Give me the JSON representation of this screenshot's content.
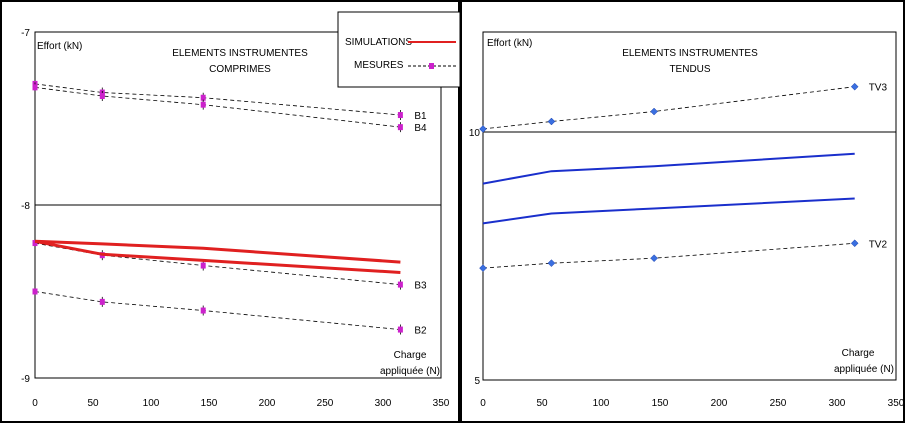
{
  "chart_data": [
    {
      "type": "line",
      "title": "ELEMENTS INSTRUMENTES",
      "subtitle": "COMPRIMES",
      "ylabel": "Effort (kN)",
      "xlabel": "Charge appliquée (N)",
      "xlabel_lines": [
        "Charge",
        "appliquée (N)"
      ],
      "xlim": [
        0,
        350
      ],
      "ylim": [
        -9,
        -7
      ],
      "x_ticks": [
        "0",
        "50",
        "100",
        "150",
        "200",
        "250",
        "300",
        "350"
      ],
      "y_ticks": [
        "-7",
        "-8",
        "-9"
      ],
      "legend": {
        "position": "top-right",
        "entries": [
          {
            "label": "SIMULATIONS",
            "style": "solid-line",
            "color": "#e02020"
          },
          {
            "label": "MESURES",
            "style": "dashed-markers",
            "color": "#cc22cc"
          }
        ]
      },
      "series": [
        {
          "name": "B1",
          "kind": "mesures",
          "x": [
            0,
            58,
            145,
            315
          ],
          "y": [
            -7.3,
            -7.35,
            -7.38,
            -7.48
          ]
        },
        {
          "name": "B4",
          "kind": "mesures",
          "x": [
            0,
            58,
            145,
            315
          ],
          "y": [
            -7.32,
            -7.37,
            -7.42,
            -7.55
          ]
        },
        {
          "name": "B3",
          "kind": "mesures",
          "x": [
            0,
            58,
            145,
            315
          ],
          "y": [
            -8.22,
            -8.29,
            -8.35,
            -8.46
          ]
        },
        {
          "name": "B2",
          "kind": "mesures",
          "x": [
            0,
            58,
            145,
            315
          ],
          "y": [
            -8.5,
            -8.56,
            -8.61,
            -8.72
          ]
        },
        {
          "kind": "simulation",
          "x": [
            0,
            58,
            145,
            315
          ],
          "y": [
            -8.21,
            -8.225,
            -8.25,
            -8.33
          ]
        },
        {
          "kind": "simulation",
          "x": [
            0,
            58,
            145,
            315
          ],
          "y": [
            -8.21,
            -8.285,
            -8.32,
            -8.39
          ]
        }
      ]
    },
    {
      "type": "line",
      "title": "ELEMENTS INSTRUMENTES",
      "subtitle": "TENDUS",
      "ylabel": "Effort (kN)",
      "xlabel": "Charge appliquée (N)",
      "xlabel_lines": [
        "Charge",
        "appliquée (N)"
      ],
      "xlim": [
        0,
        350
      ],
      "ylim": [
        5,
        12
      ],
      "x_ticks": [
        "0",
        "50",
        "100",
        "150",
        "200",
        "250",
        "300",
        "350"
      ],
      "y_ticks": [
        "10",
        "5"
      ],
      "series": [
        {
          "name": "TV3",
          "kind": "mesures",
          "x": [
            0,
            58,
            145,
            315
          ],
          "y": [
            10.05,
            10.2,
            10.4,
            10.9
          ]
        },
        {
          "name": "TV2",
          "kind": "mesures",
          "x": [
            0,
            58,
            145,
            315
          ],
          "y": [
            7.25,
            7.35,
            7.45,
            7.75
          ]
        },
        {
          "kind": "simulation",
          "x": [
            0,
            58,
            145,
            315
          ],
          "y": [
            8.95,
            9.2,
            9.3,
            9.55
          ]
        },
        {
          "kind": "simulation",
          "x": [
            0,
            58,
            145,
            315
          ],
          "y": [
            8.15,
            8.35,
            8.45,
            8.65
          ]
        }
      ]
    }
  ]
}
